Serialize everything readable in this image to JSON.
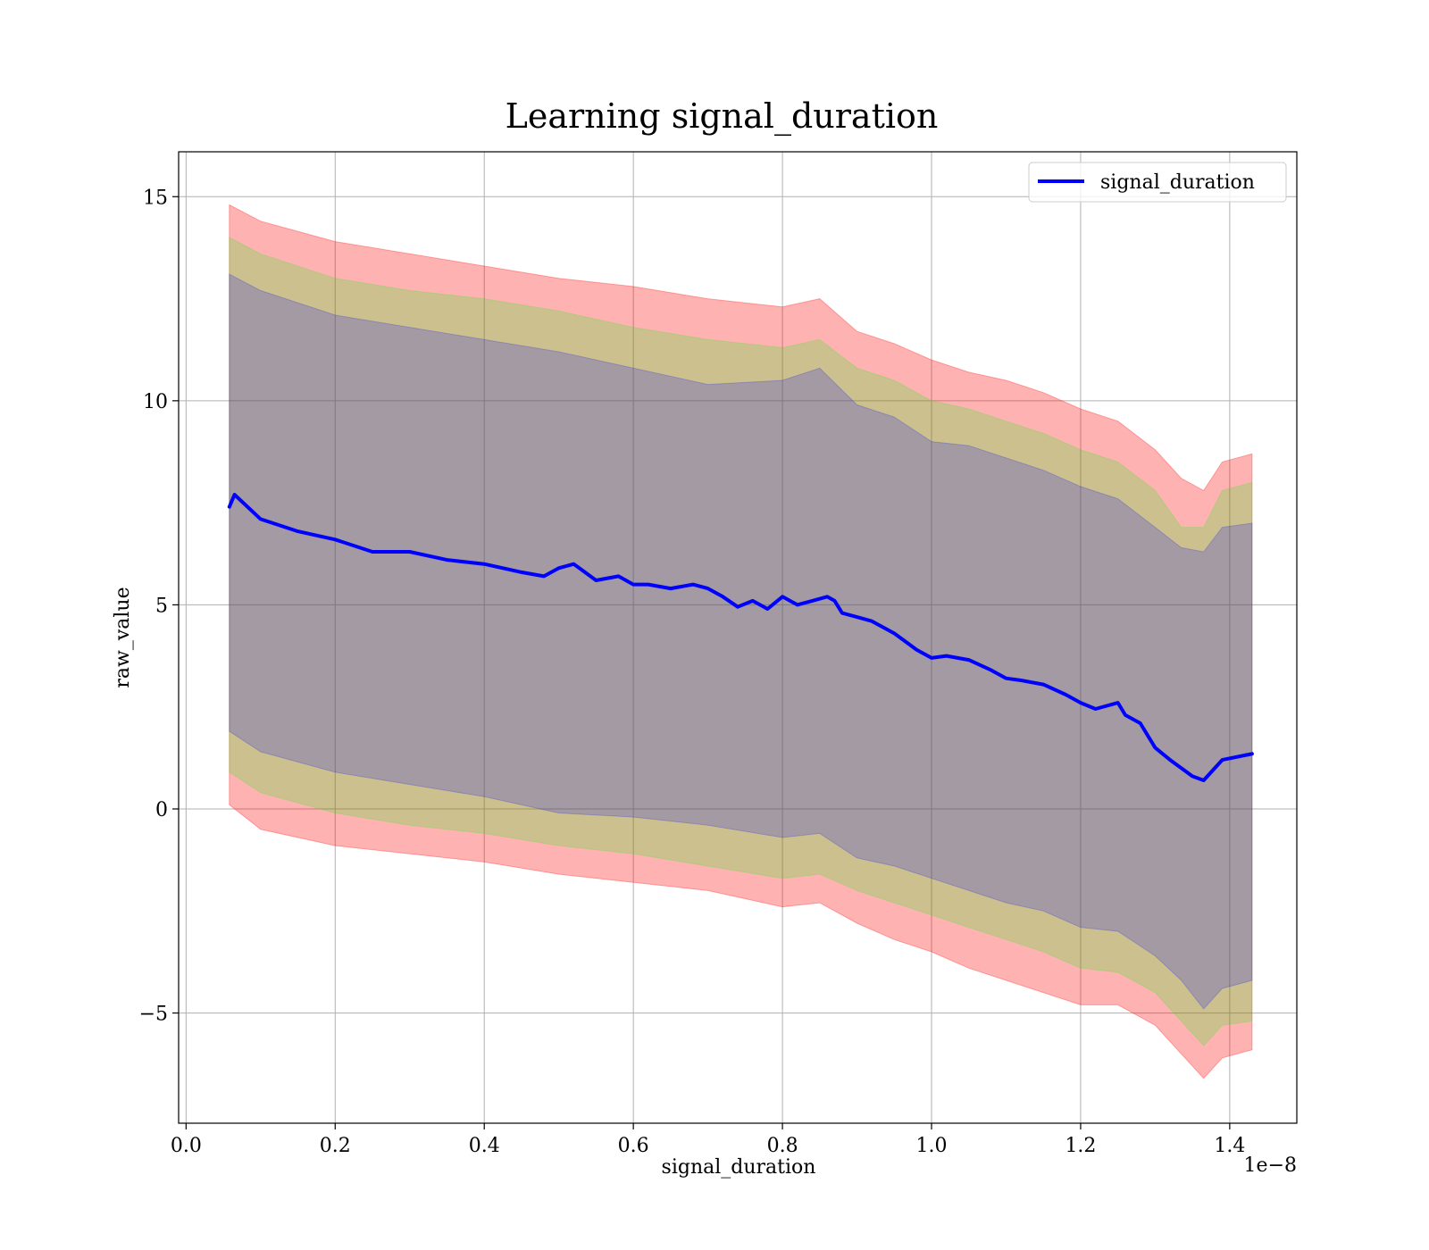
{
  "chart_data": {
    "type": "line",
    "title": "Learning signal_duration",
    "xlabel": "signal_duration",
    "ylabel": "raw_value",
    "x_offset_label": "1e−8",
    "xlim": [
      -0.01,
      1.49
    ],
    "ylim": [
      -7.7,
      16.1
    ],
    "x_ticks": [
      0.0,
      0.2,
      0.4,
      0.6,
      0.8,
      1.0,
      1.2,
      1.4
    ],
    "x_tick_labels": [
      "0.0",
      "0.2",
      "0.4",
      "0.6",
      "0.8",
      "1.0",
      "1.2",
      "1.4"
    ],
    "y_ticks": [
      -5,
      0,
      5,
      10,
      15
    ],
    "y_tick_labels": [
      "−5",
      "0",
      "5",
      "10",
      "15"
    ],
    "grid": true,
    "legend_position": "top-right",
    "series": [
      {
        "name": "signal_duration",
        "color": "#0000ff",
        "x": [
          0.058,
          0.065,
          0.1,
          0.15,
          0.2,
          0.25,
          0.3,
          0.35,
          0.4,
          0.45,
          0.48,
          0.5,
          0.52,
          0.55,
          0.58,
          0.6,
          0.62,
          0.65,
          0.68,
          0.7,
          0.72,
          0.74,
          0.76,
          0.78,
          0.8,
          0.82,
          0.84,
          0.86,
          0.87,
          0.88,
          0.9,
          0.92,
          0.95,
          0.98,
          1.0,
          1.02,
          1.05,
          1.08,
          1.1,
          1.12,
          1.15,
          1.18,
          1.2,
          1.22,
          1.25,
          1.26,
          1.28,
          1.3,
          1.32,
          1.35,
          1.365,
          1.39,
          1.43
        ],
        "y": [
          7.4,
          7.7,
          7.1,
          6.8,
          6.6,
          6.3,
          6.3,
          6.1,
          6.0,
          5.8,
          5.7,
          5.9,
          6.0,
          5.6,
          5.7,
          5.5,
          5.5,
          5.4,
          5.5,
          5.4,
          5.2,
          4.95,
          5.1,
          4.9,
          5.2,
          5.0,
          5.1,
          5.2,
          5.1,
          4.8,
          4.7,
          4.6,
          4.3,
          3.9,
          3.7,
          3.75,
          3.65,
          3.4,
          3.2,
          3.15,
          3.05,
          2.8,
          2.6,
          2.45,
          2.6,
          2.3,
          2.1,
          1.5,
          1.2,
          0.8,
          0.7,
          1.2,
          1.35
        ]
      }
    ],
    "bands": [
      {
        "color": "#ff0000",
        "opacity": 0.3,
        "x": [
          0.058,
          0.1,
          0.2,
          0.3,
          0.4,
          0.5,
          0.6,
          0.7,
          0.8,
          0.85,
          0.9,
          0.95,
          1.0,
          1.05,
          1.1,
          1.15,
          1.2,
          1.25,
          1.3,
          1.335,
          1.365,
          1.39,
          1.43
        ],
        "upper": [
          14.8,
          14.4,
          13.9,
          13.6,
          13.3,
          13.0,
          12.8,
          12.5,
          12.3,
          12.5,
          11.7,
          11.4,
          11.0,
          10.7,
          10.5,
          10.2,
          9.8,
          9.5,
          8.8,
          8.1,
          7.8,
          8.5,
          8.7
        ],
        "lower": [
          0.1,
          -0.5,
          -0.9,
          -1.1,
          -1.3,
          -1.6,
          -1.8,
          -2.0,
          -2.4,
          -2.3,
          -2.8,
          -3.2,
          -3.5,
          -3.9,
          -4.2,
          -4.5,
          -4.8,
          -4.8,
          -5.3,
          -6.0,
          -6.6,
          -6.1,
          -5.9
        ]
      },
      {
        "color": "#00ff00",
        "opacity": 0.2,
        "x": [
          0.058,
          0.1,
          0.2,
          0.3,
          0.4,
          0.5,
          0.6,
          0.7,
          0.8,
          0.85,
          0.9,
          0.95,
          1.0,
          1.05,
          1.1,
          1.15,
          1.2,
          1.25,
          1.3,
          1.335,
          1.365,
          1.39,
          1.43
        ],
        "upper": [
          14.0,
          13.6,
          13.0,
          12.7,
          12.5,
          12.2,
          11.8,
          11.5,
          11.3,
          11.5,
          10.8,
          10.5,
          10.0,
          9.8,
          9.5,
          9.2,
          8.8,
          8.5,
          7.8,
          6.9,
          6.9,
          7.8,
          8.0
        ],
        "lower": [
          0.9,
          0.4,
          -0.1,
          -0.4,
          -0.6,
          -0.9,
          -1.1,
          -1.4,
          -1.7,
          -1.6,
          -2.0,
          -2.3,
          -2.6,
          -2.9,
          -3.2,
          -3.5,
          -3.9,
          -4.0,
          -4.5,
          -5.2,
          -5.8,
          -5.3,
          -5.2
        ]
      },
      {
        "color": "#0000ff",
        "opacity": 0.2,
        "x": [
          0.058,
          0.1,
          0.2,
          0.3,
          0.4,
          0.5,
          0.6,
          0.7,
          0.8,
          0.85,
          0.9,
          0.95,
          1.0,
          1.05,
          1.1,
          1.15,
          1.2,
          1.25,
          1.3,
          1.335,
          1.365,
          1.39,
          1.43
        ],
        "upper": [
          13.1,
          12.7,
          12.1,
          11.8,
          11.5,
          11.2,
          10.8,
          10.4,
          10.5,
          10.8,
          9.9,
          9.6,
          9.0,
          8.9,
          8.6,
          8.3,
          7.9,
          7.6,
          6.9,
          6.4,
          6.3,
          6.9,
          7.0
        ],
        "lower": [
          1.9,
          1.4,
          0.9,
          0.6,
          0.3,
          -0.1,
          -0.2,
          -0.4,
          -0.7,
          -0.6,
          -1.2,
          -1.4,
          -1.7,
          -2.0,
          -2.3,
          -2.5,
          -2.9,
          -3.0,
          -3.6,
          -4.2,
          -4.9,
          -4.4,
          -4.2
        ]
      }
    ]
  }
}
